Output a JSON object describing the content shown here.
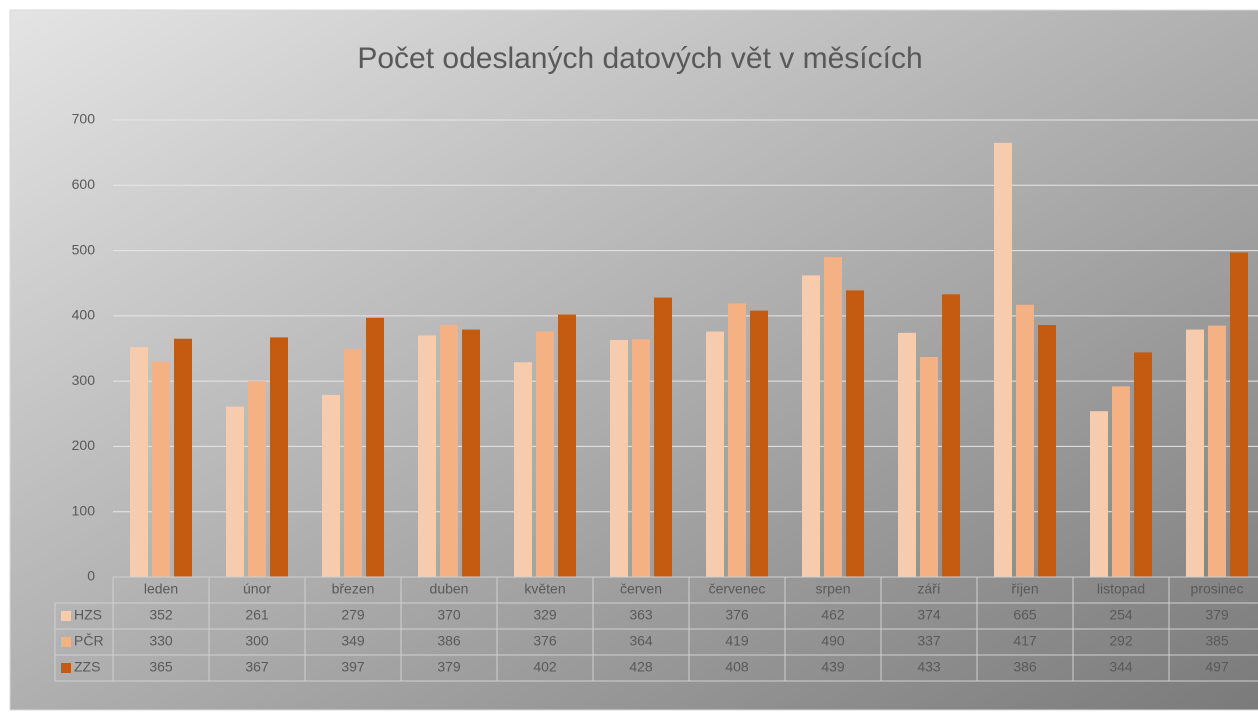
{
  "chart_data": {
    "type": "bar",
    "title": "Počet odeslaných datových vět v měsících",
    "categories": [
      "leden",
      "únor",
      "březen",
      "duben",
      "květen",
      "červen",
      "červenec",
      "srpen",
      "září",
      "říjen",
      "listopad",
      "prosinec"
    ],
    "series": [
      {
        "name": "HZS",
        "color": "#f8cbad",
        "values": [
          352,
          261,
          279,
          370,
          329,
          363,
          376,
          462,
          374,
          665,
          254,
          379
        ]
      },
      {
        "name": "PČR",
        "color": "#f4b183",
        "values": [
          330,
          300,
          349,
          386,
          376,
          364,
          419,
          490,
          337,
          417,
          292,
          385
        ]
      },
      {
        "name": "ZZS",
        "color": "#c55a11",
        "values": [
          365,
          367,
          397,
          379,
          402,
          428,
          408,
          439,
          433,
          386,
          344,
          497
        ]
      }
    ],
    "ylim": [
      0,
      700
    ],
    "yticks": [
      0,
      100,
      200,
      300,
      400,
      500,
      600,
      700
    ],
    "grid": true,
    "data_table": true
  }
}
